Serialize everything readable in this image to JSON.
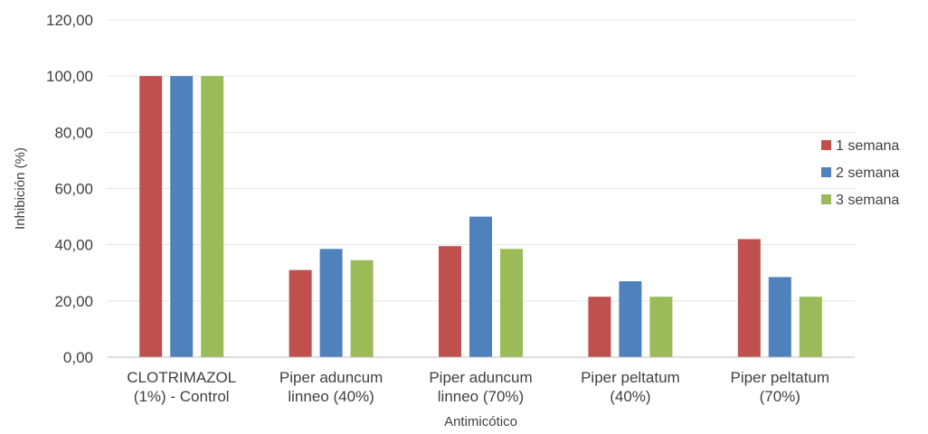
{
  "chart_data": {
    "type": "bar",
    "title": "",
    "xlabel": "Antimicótico",
    "ylabel": "Inhibición (%)",
    "ylim": [
      0,
      120
    ],
    "yticks": [
      "0,00",
      "20,00",
      "40,00",
      "60,00",
      "80,00",
      "100,00",
      "120,00"
    ],
    "grid": true,
    "legend_position": "right",
    "categories": [
      [
        "CLOTRIMAZOL",
        "(1%) - Control"
      ],
      [
        "Piper aduncum",
        "linneo (40%)"
      ],
      [
        "Piper aduncum",
        "linneo (70%)"
      ],
      [
        "Piper peltatum",
        "(40%)"
      ],
      [
        "Piper peltatum",
        "(70%)"
      ]
    ],
    "series": [
      {
        "name": "1 semana",
        "color": "#c0504d",
        "values": [
          100,
          31,
          39.5,
          21.5,
          42
        ]
      },
      {
        "name": "2 semana",
        "color": "#4f81bd",
        "values": [
          100,
          38.5,
          50,
          27,
          28.5
        ]
      },
      {
        "name": "3 semana",
        "color": "#9bbb59",
        "values": [
          100,
          34.5,
          38.5,
          21.5,
          21.5
        ]
      }
    ]
  }
}
